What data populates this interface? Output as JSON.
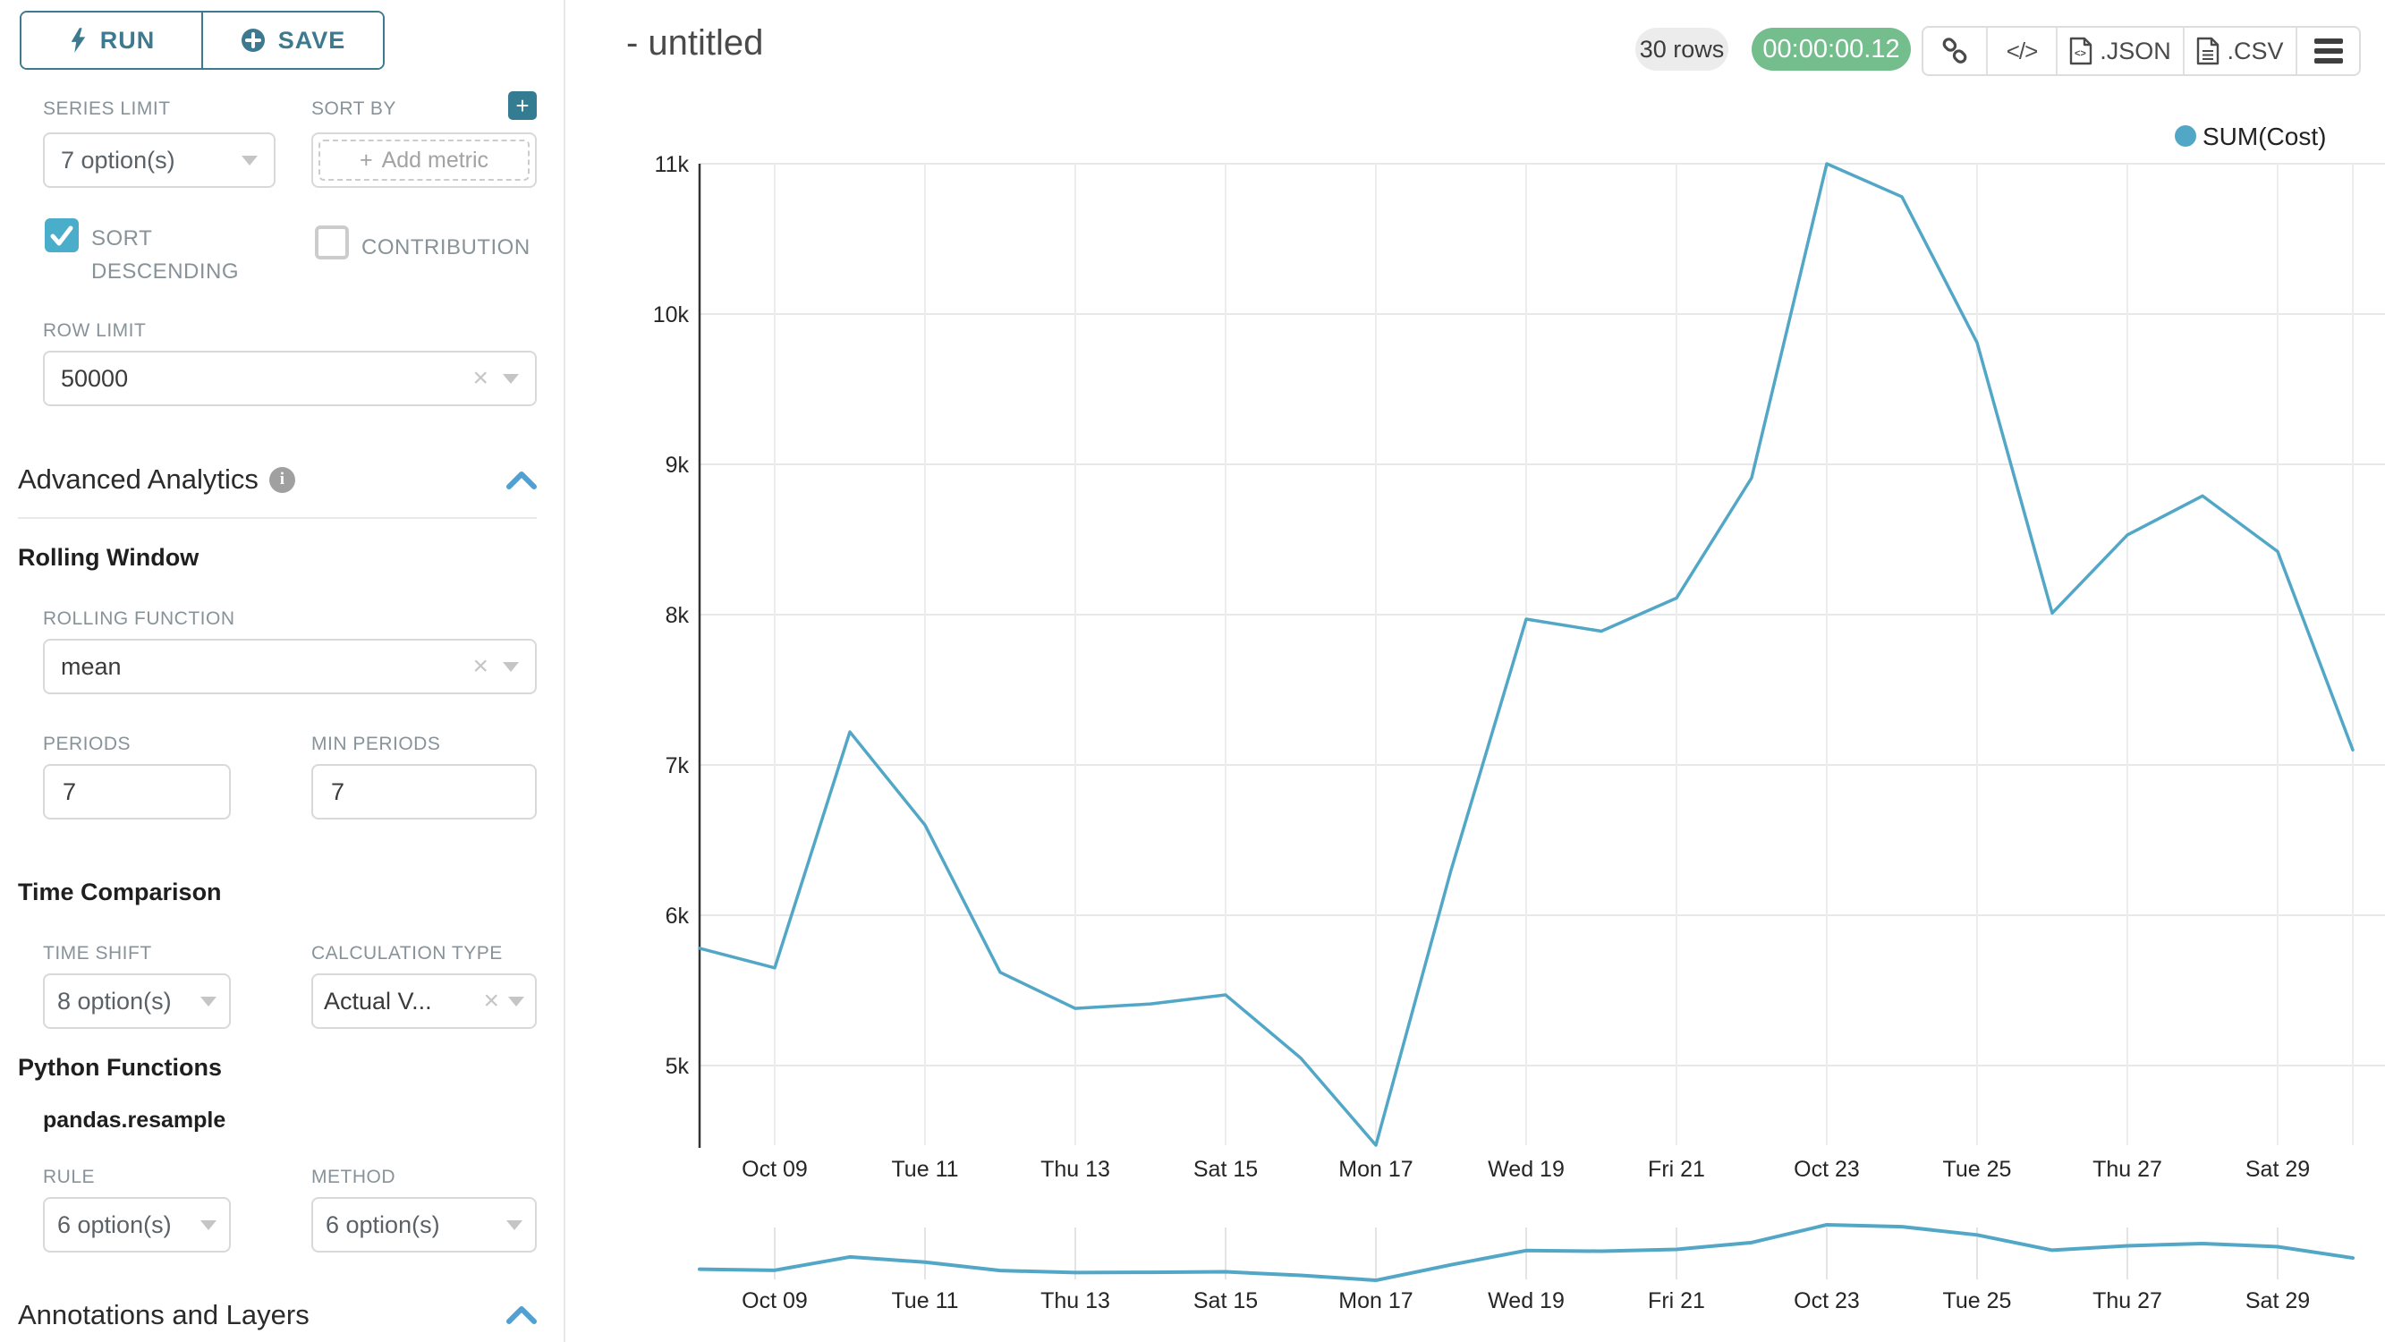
{
  "colors": {
    "accent_teal": "#3d7a90",
    "checkbox_teal": "#4aaecb",
    "plus_button_teal": "#337c91",
    "section_caret_blue": "#51a0d2",
    "line_teal": "#52a7c7",
    "timer_green": "#74bd8c",
    "grid_gray": "#e8e8e8"
  },
  "sidebar": {
    "run_label": "RUN",
    "save_label": "SAVE",
    "series_limit": {
      "label": "SERIES LIMIT",
      "value": "7 option(s)"
    },
    "sort_by": {
      "label": "SORT BY",
      "placeholder": "Add metric"
    },
    "sort_descending": {
      "label": "SORT DESCENDING",
      "checked": true
    },
    "contribution": {
      "label": "CONTRIBUTION",
      "checked": false
    },
    "row_limit": {
      "label": "ROW LIMIT",
      "value": "50000"
    },
    "advanced_analytics_title": "Advanced Analytics",
    "rolling_window": {
      "title": "Rolling Window",
      "rolling_function": {
        "label": "ROLLING FUNCTION",
        "value": "mean"
      },
      "periods": {
        "label": "PERIODS",
        "value": "7"
      },
      "min_periods": {
        "label": "MIN PERIODS",
        "value": "7"
      }
    },
    "time_comparison": {
      "title": "Time Comparison",
      "time_shift": {
        "label": "TIME SHIFT",
        "value": "8 option(s)"
      },
      "calculation_type": {
        "label": "CALCULATION TYPE",
        "value": "Actual V..."
      }
    },
    "python_functions": {
      "title": "Python Functions",
      "subtitle": "pandas.resample",
      "rule": {
        "label": "RULE",
        "value": "6 option(s)"
      },
      "method": {
        "label": "METHOD",
        "value": "6 option(s)"
      }
    },
    "annotations_title": "Annotations and Layers"
  },
  "header": {
    "title": "- untitled",
    "rows_badge": "30 rows",
    "timer_badge": "00:00:00.12",
    "export_json_label": ".JSON",
    "export_csv_label": ".CSV"
  },
  "chart_data": {
    "type": "line",
    "title": "",
    "legend_position": "top-right",
    "grid": true,
    "x": [
      "Oct 08",
      "Oct 09",
      "Oct 10",
      "Oct 11",
      "Oct 12",
      "Oct 13",
      "Oct 14",
      "Oct 15",
      "Oct 16",
      "Oct 17",
      "Oct 18",
      "Oct 19",
      "Oct 20",
      "Oct 21",
      "Oct 22",
      "Oct 23",
      "Oct 24",
      "Oct 25",
      "Oct 26",
      "Oct 27",
      "Oct 28",
      "Oct 29",
      "Oct 30"
    ],
    "series": [
      {
        "name": "SUM(Cost)",
        "color": "#52a7c7",
        "values": [
          5780,
          5650,
          7220,
          6600,
          5620,
          5380,
          5410,
          5470,
          5050,
          4470,
          6300,
          7970,
          7890,
          8110,
          8910,
          11000,
          10780,
          9810,
          8010,
          8530,
          8790,
          8420,
          7100
        ]
      }
    ],
    "x_tick_labels": [
      "Oct 09",
      "Tue 11",
      "Thu 13",
      "Sat 15",
      "Mon 17",
      "Wed 19",
      "Fri 21",
      "Oct 23",
      "Tue 25",
      "Thu 27",
      "Sat 29"
    ],
    "y_tick_labels": [
      "5k",
      "6k",
      "7k",
      "8k",
      "9k",
      "10k",
      "11k"
    ],
    "ylim": [
      4470,
      11000
    ],
    "has_range_minimap": true
  }
}
